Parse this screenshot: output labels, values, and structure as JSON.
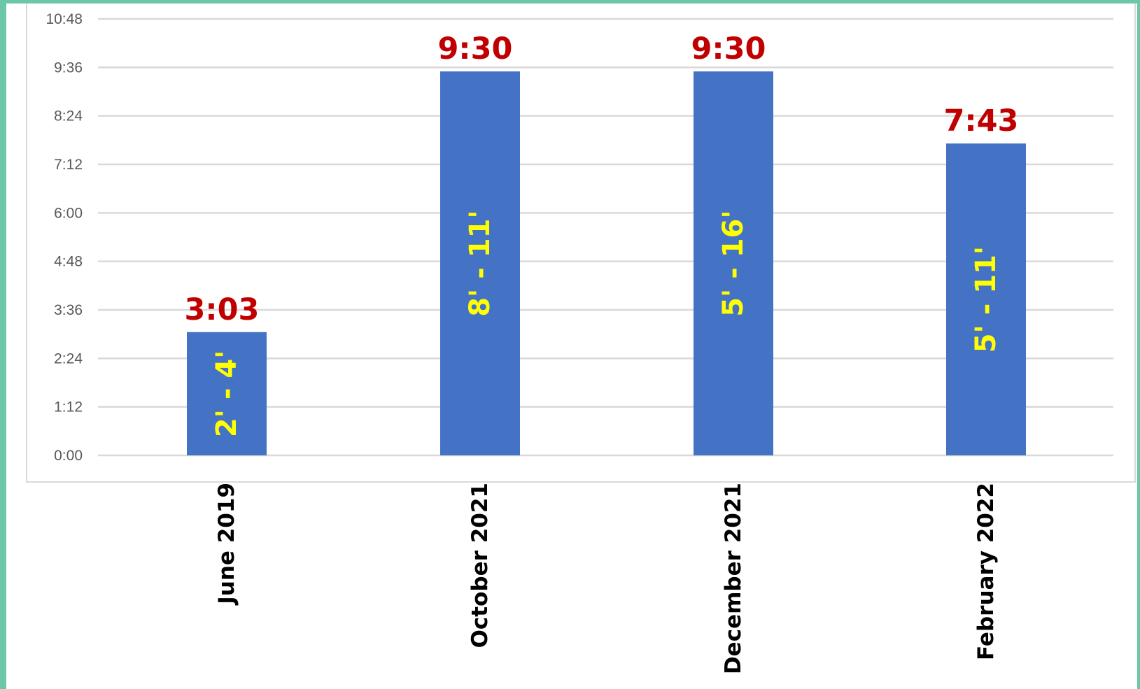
{
  "chart_data": {
    "type": "bar",
    "categories": [
      "June 2019",
      "October 2021",
      "December 2021",
      "February 2022"
    ],
    "values": [
      "3:03",
      "9:30",
      "9:30",
      "7:43"
    ],
    "value_labels": [
      "3:03",
      "9:30",
      "9:30",
      "7:43"
    ],
    "bar_range_labels": [
      "2' - 4'",
      "8' - 11'",
      "5' - 16'",
      "5' - 11'"
    ],
    "y_ticks": [
      "0:00",
      "1:12",
      "2:24",
      "3:36",
      "4:48",
      "6:00",
      "7:12",
      "8:24",
      "9:36",
      "10:48"
    ],
    "ylim": [
      "0:00",
      "10:48"
    ],
    "title": "",
    "xlabel": "",
    "ylabel": "",
    "grid": true,
    "legend": "none",
    "category_label_rotation": "vertical",
    "colors": {
      "bar": "#4472c4",
      "value_label": "#c00000",
      "range_label": "#ffff00",
      "gridline": "#d9d9d9",
      "tick_label": "#595959",
      "category_label": "#000000",
      "frame": "#6cc7a7"
    }
  }
}
